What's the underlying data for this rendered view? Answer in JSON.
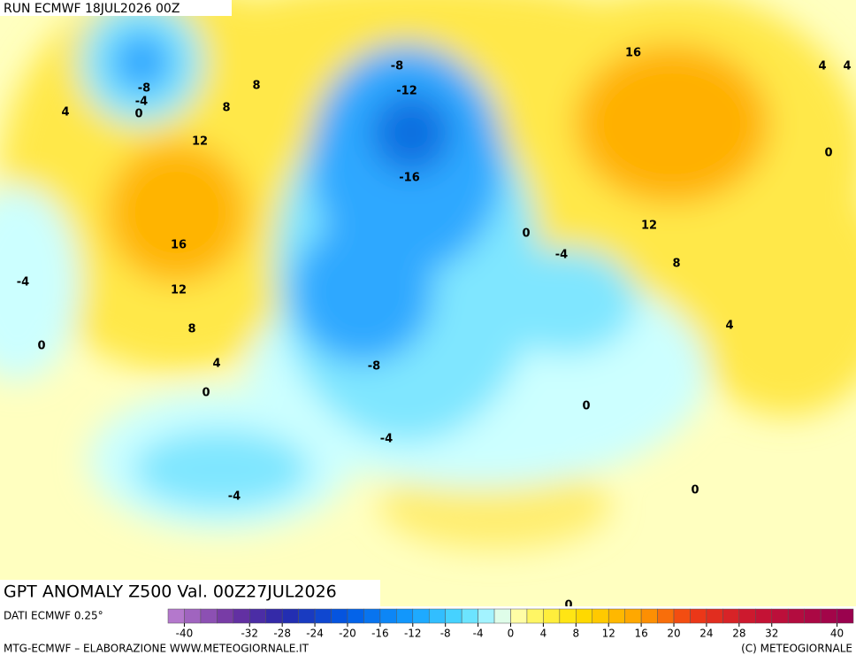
{
  "header": {
    "run": "RUN ECMWF 18JUL2026 00Z"
  },
  "map": {
    "title": "GPT ANOMALY Z500 Val. 00Z27JUL2026",
    "contour_labels": [
      -8,
      -4,
      0,
      4,
      8,
      8,
      12,
      16,
      12,
      8,
      4,
      0,
      -4,
      0,
      -8,
      -12,
      -16,
      16,
      4,
      4,
      0,
      12,
      8,
      0,
      -4,
      4,
      0,
      -8,
      -4,
      -4,
      0,
      0
    ]
  },
  "legend": {
    "source": "DATI ECMWF 0.25°",
    "ticks": [
      -40,
      -32,
      -28,
      -24,
      -20,
      -16,
      -12,
      -8,
      -4,
      0,
      4,
      8,
      12,
      16,
      20,
      24,
      28,
      32,
      40
    ]
  },
  "footer": {
    "left": "MTG-ECMWF – ELABORAZIONE WWW.METEOGIORNALE.IT",
    "right": "(C) METEOGIORNALE"
  }
}
